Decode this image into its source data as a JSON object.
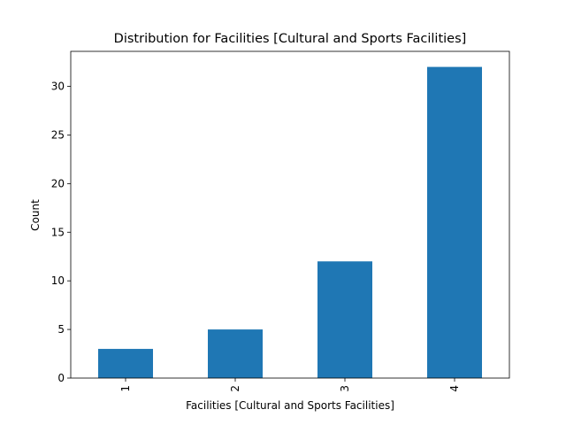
{
  "chart_data": {
    "type": "bar",
    "title": "Distribution for Facilities [Cultural and Sports Facilities]",
    "xlabel": "Facilities [Cultural and Sports Facilities]",
    "ylabel": "Count",
    "categories": [
      "1",
      "2",
      "3",
      "4"
    ],
    "values": [
      3,
      5,
      12,
      32
    ],
    "ylim": [
      0,
      33.6
    ],
    "yticks": [
      0,
      5,
      10,
      15,
      20,
      25,
      30
    ],
    "x_tick_rotation": "vertical",
    "grid": false,
    "legend": "none",
    "bar_color": "#1f77b4"
  }
}
